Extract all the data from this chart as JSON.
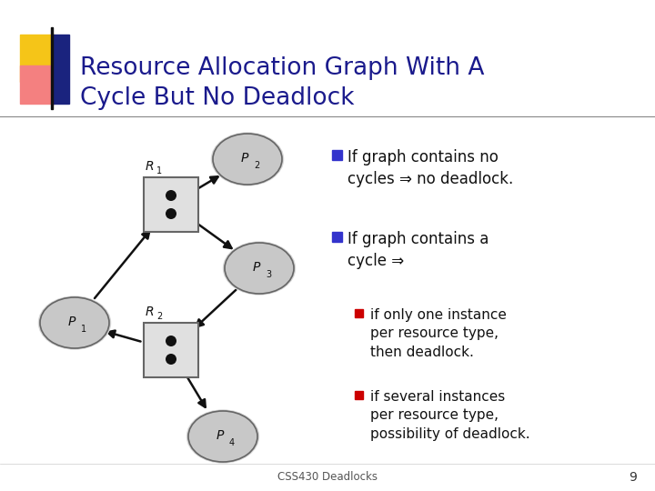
{
  "title_line1": "Resource Allocation Graph With A",
  "title_line2": "Cycle But No Deadlock",
  "title_color": "#1a1a8c",
  "title_fontsize": 19,
  "bg_color": "#ffffff",
  "footer_text": "CSS430 Deadlocks",
  "page_number": "9",
  "edges": [
    {
      "from": "P1",
      "to": "R1",
      "type": "request"
    },
    {
      "from": "R1",
      "to": "P2",
      "type": "assign"
    },
    {
      "from": "R1",
      "to": "P3",
      "type": "assign"
    },
    {
      "from": "P3",
      "to": "R2",
      "type": "request"
    },
    {
      "from": "R2",
      "to": "P1",
      "type": "assign"
    },
    {
      "from": "R2",
      "to": "P4",
      "type": "assign"
    }
  ],
  "bullet_color": "#3333cc",
  "sub_bullet_color": "#cc0000",
  "text_items": [
    {
      "text": "If graph contains no\ncycles ⇒ no deadlock.",
      "level": 1
    },
    {
      "text": "If graph contains a\ncycle ⇒",
      "level": 1
    },
    {
      "text": "if only one instance\nper resource type,\nthen deadlock.",
      "level": 2
    },
    {
      "text": "if several instances\nper resource type,\npossibility of deadlock.",
      "level": 2
    }
  ],
  "node_ellipse_color": "#c8c8c8",
  "node_ellipse_color2": "#a8b0b8",
  "node_rect_color": "#e0e0e0",
  "node_border_color": "#666666",
  "edge_color": "#111111",
  "dot_color": "#111111",
  "accent_yellow": "#f5c518",
  "accent_red": "#e53935",
  "accent_blue": "#1a237e",
  "accent_pink": "#f48080",
  "divider_color": "#888888",
  "footer_color": "#555555",
  "page_num_color": "#333333"
}
